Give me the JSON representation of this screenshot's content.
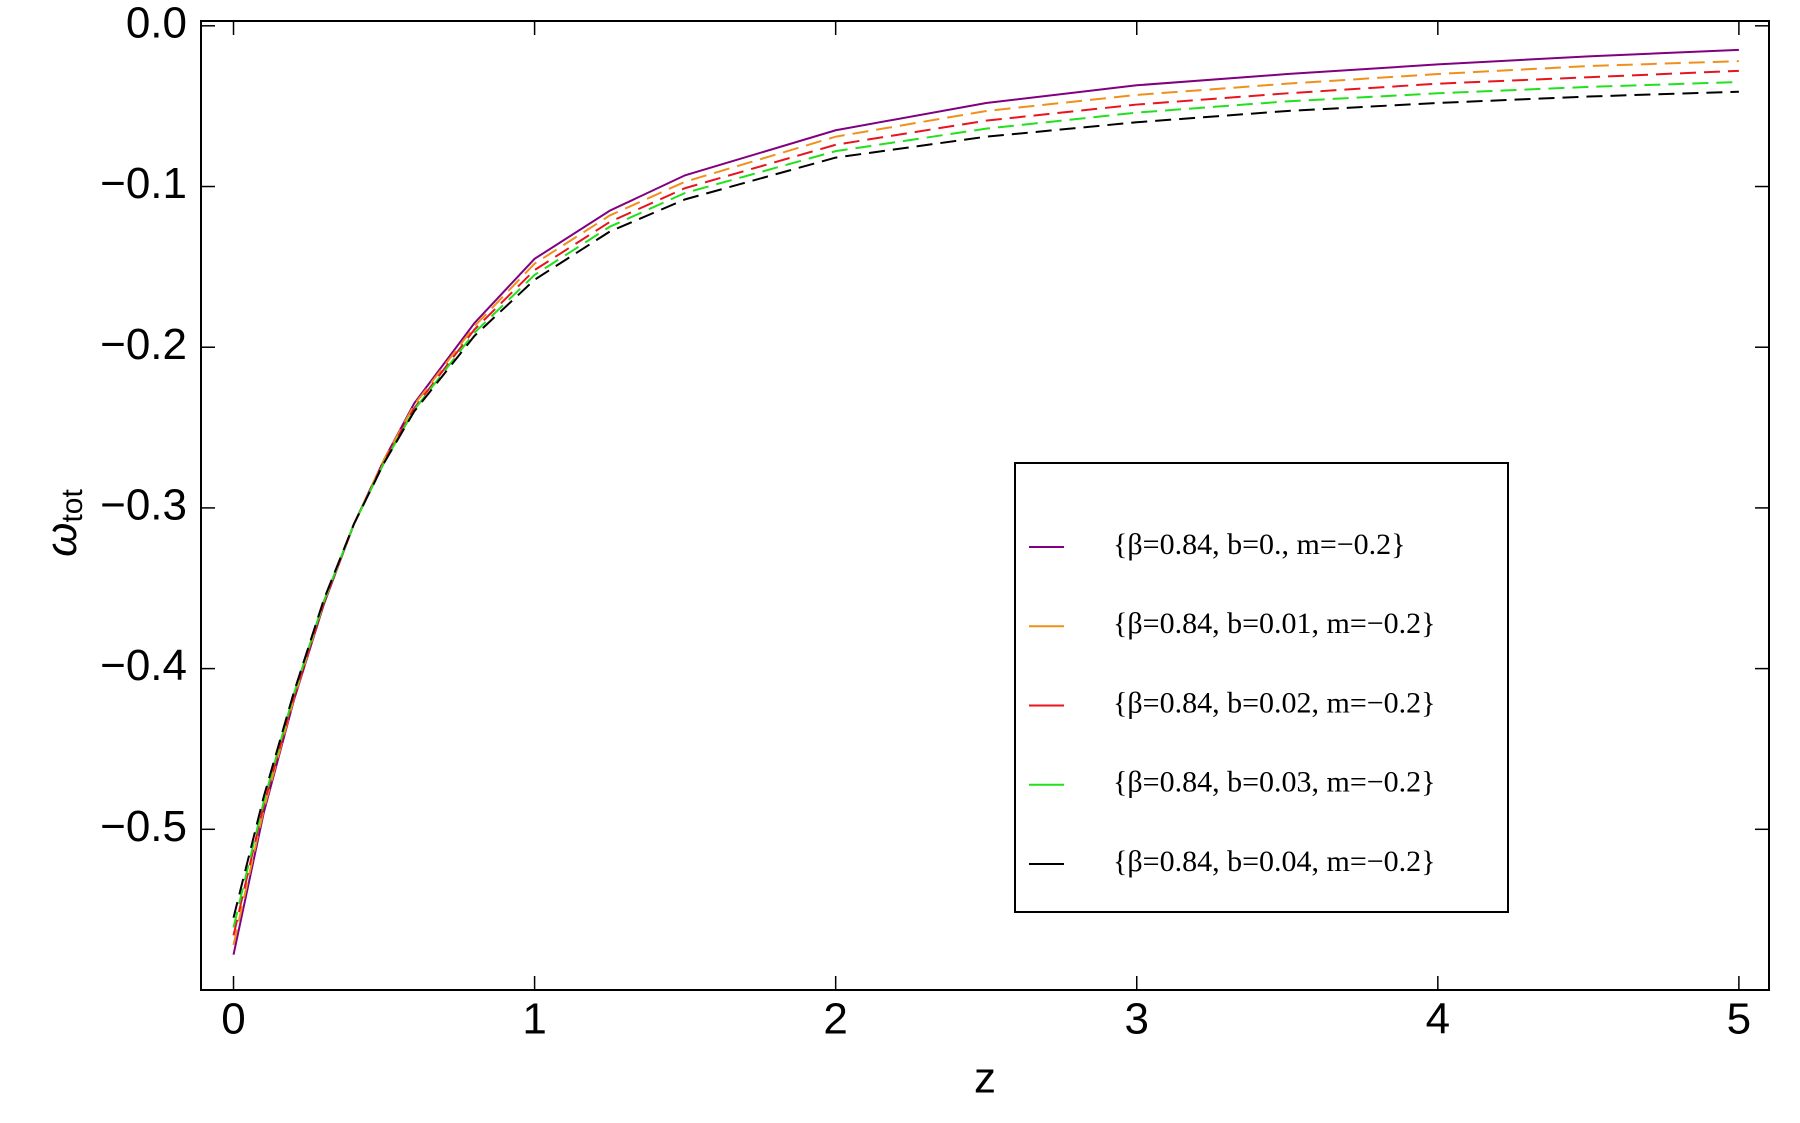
{
  "chart_data": {
    "type": "line",
    "x_label": "z",
    "y_label": [
      "ω",
      "tot"
    ],
    "x": [
      0,
      0.1,
      0.2,
      0.3,
      0.4,
      0.5,
      0.6,
      0.8,
      1,
      1.25,
      1.5,
      2,
      2.5,
      3,
      3.5,
      4,
      4.5,
      5
    ],
    "series": [
      {
        "name": "{β=0.84, b=0., m=−0.2}",
        "color": "#800080",
        "dashed": false,
        "values": [
          -0.578,
          -0.49,
          -0.42,
          -0.36,
          -0.31,
          -0.27,
          -0.235,
          -0.185,
          -0.145,
          -0.115,
          -0.093,
          -0.065,
          -0.048,
          -0.037,
          -0.03,
          -0.024,
          -0.019,
          -0.015
        ]
      },
      {
        "name": "{β=0.84, b=0.01, m=−0.2}",
        "color": "#f0901a",
        "dashed": true,
        "values": [
          -0.572,
          -0.488,
          -0.419,
          -0.359,
          -0.31,
          -0.27,
          -0.236,
          -0.187,
          -0.148,
          -0.118,
          -0.097,
          -0.069,
          -0.053,
          -0.043,
          -0.036,
          -0.03,
          -0.025,
          -0.022
        ]
      },
      {
        "name": "{β=0.84, b=0.02, m=−0.2}",
        "color": "#e8141e",
        "dashed": true,
        "values": [
          -0.566,
          -0.485,
          -0.418,
          -0.359,
          -0.31,
          -0.271,
          -0.238,
          -0.189,
          -0.152,
          -0.122,
          -0.101,
          -0.074,
          -0.059,
          -0.049,
          -0.042,
          -0.036,
          -0.032,
          -0.028
        ]
      },
      {
        "name": "{β=0.84, b=0.03, m=−0.2}",
        "color": "#22e01e",
        "dashed": true,
        "values": [
          -0.561,
          -0.483,
          -0.416,
          -0.358,
          -0.31,
          -0.272,
          -0.239,
          -0.191,
          -0.155,
          -0.125,
          -0.104,
          -0.078,
          -0.064,
          -0.054,
          -0.047,
          -0.042,
          -0.038,
          -0.035
        ]
      },
      {
        "name": "{β=0.84, b=0.04, m=−0.2}",
        "color": "#000000",
        "dashed": true,
        "values": [
          -0.555,
          -0.48,
          -0.415,
          -0.357,
          -0.31,
          -0.272,
          -0.24,
          -0.193,
          -0.158,
          -0.128,
          -0.108,
          -0.082,
          -0.069,
          -0.06,
          -0.053,
          -0.048,
          -0.044,
          -0.041
        ]
      }
    ],
    "xlim": [
      -0.108,
      5.1
    ],
    "ylim": [
      -0.6,
      0.003
    ],
    "xticks": [
      0,
      1,
      2,
      3,
      4,
      5
    ],
    "yticks": [
      {
        "value": 0,
        "label": "0.0"
      },
      {
        "value": -0.1,
        "label": "−0.1"
      },
      {
        "value": -0.2,
        "label": "−0.2"
      },
      {
        "value": -0.3,
        "label": "−0.3"
      },
      {
        "value": -0.4,
        "label": "−0.4"
      },
      {
        "value": -0.5,
        "label": "−0.5"
      }
    ],
    "grid": false
  }
}
